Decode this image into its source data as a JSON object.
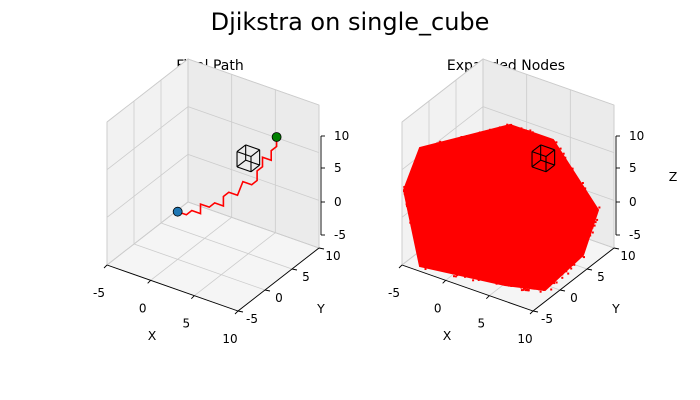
{
  "figure": {
    "title": "Djikstra on single_cube"
  },
  "chart_data": [
    {
      "type": "scatter3d",
      "title": "Final Path",
      "xlabel": "X",
      "ylabel": "Y",
      "zlabel": "",
      "xlim": [
        -5,
        10
      ],
      "ylim": [
        -5,
        10
      ],
      "zlim": [
        -5,
        10
      ],
      "xticks": [
        -5,
        0,
        5,
        10
      ],
      "yticks": [
        -5,
        0,
        5,
        10
      ],
      "zticks": [
        -5,
        0,
        5,
        10
      ],
      "grid": true,
      "start": {
        "x": 0,
        "y": 0,
        "z": 0,
        "color": "#1f77b4"
      },
      "goal": {
        "x": 7,
        "y": 7,
        "z": 7,
        "color": "#008000"
      },
      "obstacle": {
        "type": "cube",
        "center": [
          5,
          5,
          5
        ],
        "size": 1,
        "color": "#000000"
      },
      "path": {
        "color": "#ff0000",
        "points": [
          [
            0,
            0,
            0
          ],
          [
            1,
            0,
            0
          ],
          [
            1,
            1,
            0
          ],
          [
            2,
            1,
            0
          ],
          [
            2,
            1,
            1
          ],
          [
            3,
            1,
            1
          ],
          [
            3,
            2,
            1
          ],
          [
            4,
            2,
            1
          ],
          [
            4,
            2,
            2
          ],
          [
            4,
            3,
            2
          ],
          [
            5,
            3,
            2
          ],
          [
            5,
            4,
            3
          ],
          [
            6,
            4,
            3
          ],
          [
            6,
            5,
            3
          ],
          [
            6,
            5,
            4
          ],
          [
            6,
            6,
            4
          ],
          [
            6,
            6,
            5
          ],
          [
            7,
            6,
            5
          ],
          [
            7,
            6,
            6
          ],
          [
            7,
            7,
            6
          ],
          [
            7,
            7,
            7
          ]
        ]
      }
    },
    {
      "type": "scatter3d",
      "title": "Expanded Nodes",
      "xlabel": "X",
      "ylabel": "Y",
      "zlabel": "Z",
      "xlim": [
        -5,
        10
      ],
      "ylim": [
        -5,
        10
      ],
      "zlim": [
        -5,
        10
      ],
      "xticks": [
        -5,
        0,
        5,
        10
      ],
      "yticks": [
        -5,
        0,
        5,
        10
      ],
      "zticks": [
        -5,
        0,
        5,
        10
      ],
      "grid": true,
      "expanded": {
        "color": "#ff0000",
        "center": [
          0,
          0,
          0
        ],
        "radius": 7,
        "fill": "dense"
      },
      "obstacle": {
        "type": "cube",
        "center": [
          5,
          5,
          5
        ],
        "size": 1,
        "color": "#000000"
      }
    }
  ]
}
